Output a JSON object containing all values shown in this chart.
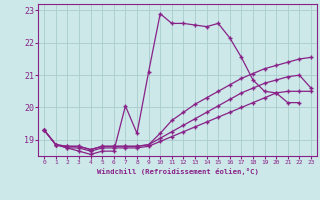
{
  "xlabel": "Windchill (Refroidissement éolien,°C)",
  "x_values": [
    0,
    1,
    2,
    3,
    4,
    5,
    6,
    7,
    8,
    9,
    10,
    11,
    12,
    13,
    14,
    15,
    16,
    17,
    18,
    19,
    20,
    21,
    22,
    23
  ],
  "line1": [
    19.3,
    18.85,
    18.75,
    18.75,
    18.65,
    18.75,
    18.75,
    18.75,
    18.75,
    18.8,
    18.95,
    19.1,
    19.25,
    19.4,
    19.55,
    19.7,
    19.85,
    20.0,
    20.15,
    20.3,
    20.45,
    20.5,
    20.5,
    20.5
  ],
  "line2": [
    19.3,
    18.85,
    18.8,
    18.8,
    18.7,
    18.8,
    18.8,
    18.8,
    18.8,
    18.85,
    19.05,
    19.25,
    19.45,
    19.65,
    19.85,
    20.05,
    20.25,
    20.45,
    20.6,
    20.75,
    20.85,
    20.95,
    21.0,
    20.6
  ],
  "line3": [
    19.3,
    18.85,
    18.8,
    18.8,
    18.7,
    18.8,
    18.8,
    18.8,
    18.8,
    18.85,
    19.2,
    19.6,
    19.85,
    20.1,
    20.3,
    20.5,
    20.7,
    20.9,
    21.05,
    21.2,
    21.3,
    21.4,
    21.5,
    21.55
  ],
  "line4": [
    19.3,
    18.85,
    18.75,
    18.65,
    18.55,
    18.65,
    18.65,
    20.05,
    19.2,
    21.1,
    22.9,
    22.6,
    22.6,
    22.55,
    22.5,
    22.6,
    22.15,
    21.55,
    20.85,
    20.5,
    20.45,
    20.15,
    20.15,
    null
  ],
  "bg_color": "#cce8e8",
  "grid_color": "#aacccc",
  "line_color": "#882288",
  "line_width": 0.9,
  "marker": "+",
  "marker_size": 3,
  "ylim": [
    18.5,
    23.2
  ],
  "xlim": [
    -0.5,
    23.5
  ],
  "yticks": [
    19,
    20,
    21,
    22,
    23
  ],
  "xticks": [
    0,
    1,
    2,
    3,
    4,
    5,
    6,
    7,
    8,
    9,
    10,
    11,
    12,
    13,
    14,
    15,
    16,
    17,
    18,
    19,
    20,
    21,
    22,
    23
  ]
}
